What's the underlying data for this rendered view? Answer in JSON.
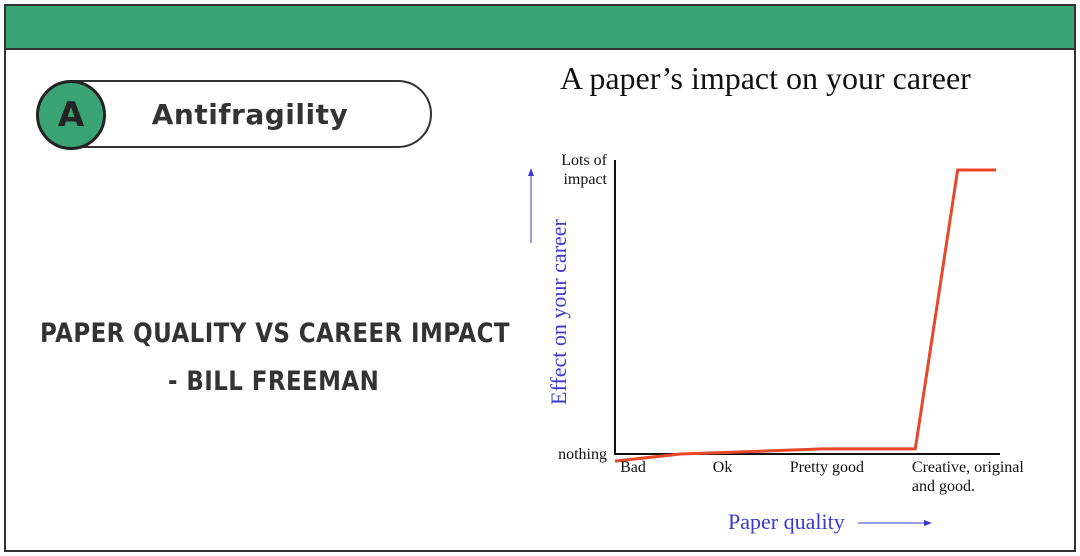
{
  "slide": {
    "badge": "A",
    "heading": "Antifragility",
    "caption": [
      "PAPER QUALITY VS CAREER IMPACT",
      "- BILL FREEMAN"
    ]
  },
  "chart_data": {
    "type": "line",
    "title": "A paper’s impact on your career",
    "x_label": "Paper quality",
    "y_label": "Effect on your career",
    "x": [
      0,
      17,
      32,
      54,
      78,
      89,
      99
    ],
    "series": [
      {
        "color": "#e8472a",
        "values": [
          -2.5,
          0,
          0.7,
          1.8,
          1.8,
          100,
          100
        ]
      }
    ],
    "xlim": [
      0,
      100
    ],
    "xticks": [
      {
        "value": 4.7,
        "label": "Bad"
      },
      {
        "value": 28,
        "label": "Ok"
      },
      {
        "value": 55,
        "label": "Pretty good"
      },
      {
        "value": 94,
        "label": "Creative, original and good."
      }
    ],
    "ylim": [
      0,
      103.5
    ],
    "yticks": [
      {
        "value": 0,
        "label": "nothing"
      },
      {
        "value": 100,
        "label": "Lots of impact"
      }
    ]
  }
}
